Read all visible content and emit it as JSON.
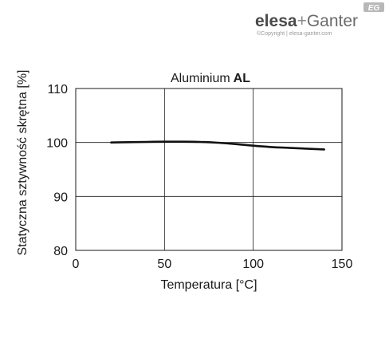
{
  "brand": {
    "name_part1": "elesa",
    "name_part2": "Ganter",
    "plus": "+",
    "badge": "EG",
    "copyright": "©Copyright | elesa-ganter.com",
    "color_dark": "#4a4a4a",
    "color_light": "#9a9a9a"
  },
  "chart_data": {
    "type": "line",
    "title_regular": "Aluminium",
    "title_bold": "AL",
    "xlabel": "Temperatura [°C]",
    "ylabel": "Statyczna sztywność skrętna [%]",
    "xlim": [
      0,
      150
    ],
    "ylim": [
      80,
      110
    ],
    "xticks": [
      0,
      50,
      100,
      150
    ],
    "yticks": [
      80,
      90,
      100,
      110
    ],
    "grid": true,
    "line_color": "#111111",
    "series": [
      {
        "x": [
          20,
          30,
          40,
          50,
          60,
          70,
          80,
          90,
          100,
          110,
          120,
          130,
          140
        ],
        "y": [
          100.0,
          100.05,
          100.1,
          100.15,
          100.15,
          100.1,
          99.95,
          99.7,
          99.4,
          99.15,
          99.0,
          98.85,
          98.7
        ]
      }
    ]
  }
}
